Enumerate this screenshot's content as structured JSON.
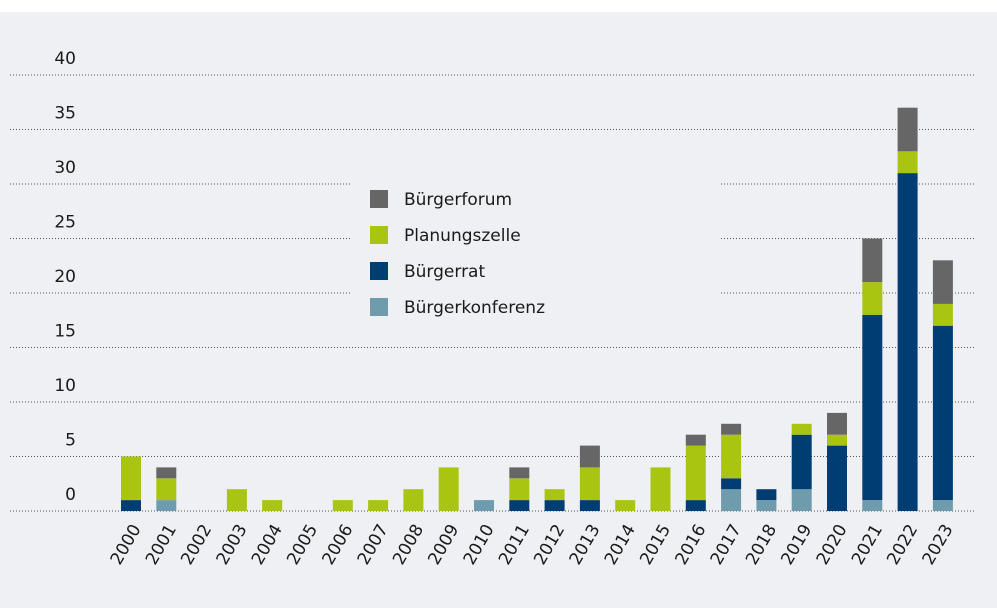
{
  "chart_data": {
    "type": "stacked_bar",
    "categories": [
      "2000",
      "2001",
      "2002",
      "2003",
      "2004",
      "2005",
      "2006",
      "2007",
      "2008",
      "2009",
      "2010",
      "2011",
      "2012",
      "2013",
      "2014",
      "2015",
      "2016",
      "2017",
      "2018",
      "2019",
      "2020",
      "2021",
      "2022",
      "2023"
    ],
    "series": [
      {
        "name": "Bürgerforum",
        "color": "#666666",
        "values": [
          0,
          1,
          0,
          0,
          0,
          0,
          0,
          0,
          0,
          0,
          0,
          1,
          0,
          2,
          0,
          0,
          1,
          1,
          0,
          0,
          2,
          4,
          4,
          4
        ]
      },
      {
        "name": "Planungszelle",
        "color": "#a9c512",
        "values": [
          4,
          2,
          0,
          2,
          1,
          0,
          1,
          1,
          2,
          4,
          0,
          2,
          1,
          3,
          1,
          4,
          5,
          4,
          0,
          1,
          1,
          3,
          2,
          2
        ]
      },
      {
        "name": "Bürgerrat",
        "color": "#003d73",
        "values": [
          1,
          0,
          0,
          0,
          0,
          0,
          0,
          0,
          0,
          0,
          0,
          1,
          1,
          1,
          0,
          0,
          1,
          1,
          1,
          5,
          6,
          17,
          31,
          16
        ]
      },
      {
        "name": "Bürgerkonferenz",
        "color": "#6f9cad",
        "values": [
          0,
          1,
          0,
          0,
          0,
          0,
          0,
          0,
          0,
          0,
          1,
          0,
          0,
          0,
          0,
          0,
          0,
          2,
          1,
          2,
          0,
          1,
          0,
          1
        ]
      }
    ],
    "ylim": [
      0,
      40
    ],
    "yticks": [
      0,
      5,
      10,
      15,
      20,
      25,
      30,
      35,
      40
    ],
    "grid": true
  }
}
